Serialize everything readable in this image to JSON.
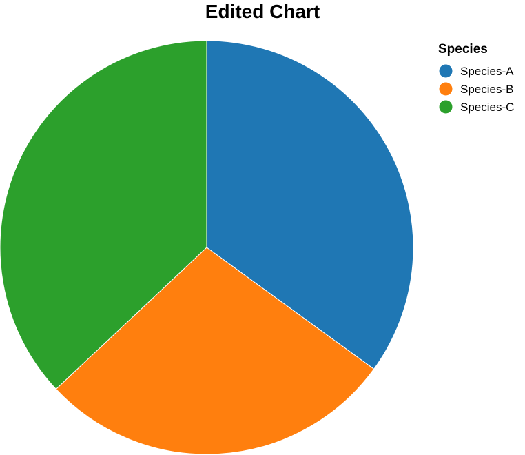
{
  "chart_data": {
    "type": "pie",
    "title": "Edited Chart",
    "legend_title": "Species",
    "legend_position": "top-right",
    "categories": [
      "Species-A",
      "Species-B",
      "Species-C"
    ],
    "values": [
      35,
      28,
      37
    ],
    "colors": [
      "#1f77b4",
      "#ff7f0e",
      "#2ca02c"
    ],
    "start": "top",
    "direction": "clockwise"
  }
}
